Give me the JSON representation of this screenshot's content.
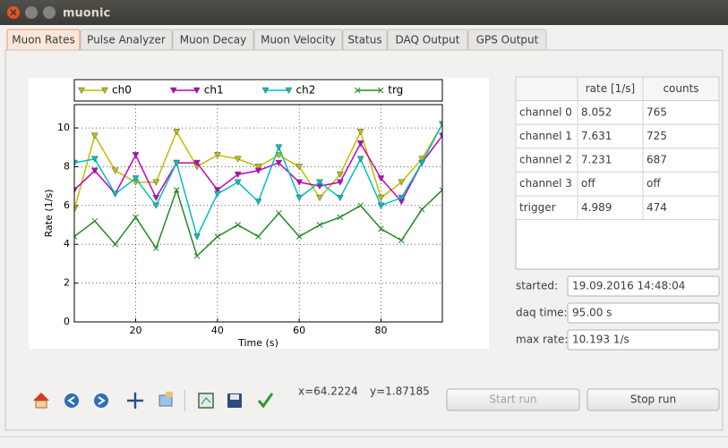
{
  "window": {
    "title": "muonic"
  },
  "tabs": [
    "Muon Rates",
    "Pulse Analyzer",
    "Muon Decay",
    "Muon Velocity",
    "Status",
    "DAQ Output",
    "GPS Output"
  ],
  "chart_data": {
    "type": "line",
    "xlabel": "Time (s)",
    "ylabel": "Rate (1/s)",
    "x": [
      5,
      10,
      15,
      20,
      25,
      30,
      35,
      40,
      45,
      50,
      55,
      60,
      65,
      70,
      75,
      80,
      85,
      90,
      95
    ],
    "series": [
      {
        "name": "ch0",
        "color": "#bfbf00",
        "marker": "v",
        "values": [
          5.8,
          9.6,
          7.8,
          7.2,
          7.2,
          9.8,
          8.0,
          8.6,
          8.4,
          8.0,
          8.6,
          8.0,
          6.4,
          7.6,
          9.8,
          6.4,
          7.2,
          8.4,
          10.2
        ]
      },
      {
        "name": "ch1",
        "color": "#bf00bf",
        "marker": "v",
        "values": [
          6.8,
          7.8,
          6.6,
          8.6,
          6.4,
          8.2,
          8.2,
          6.8,
          7.6,
          7.8,
          8.2,
          7.2,
          7.0,
          7.2,
          9.2,
          7.4,
          6.2,
          8.2,
          9.6
        ]
      },
      {
        "name": "ch2",
        "color": "#00bfbf",
        "marker": "v",
        "values": [
          8.2,
          8.4,
          6.6,
          7.4,
          6.0,
          8.2,
          4.4,
          6.6,
          7.2,
          6.2,
          9.0,
          6.4,
          7.2,
          6.4,
          8.4,
          6.0,
          6.4,
          8.2,
          10.2
        ]
      },
      {
        "name": "trg",
        "color": "#228b22",
        "marker": "x",
        "values": [
          4.4,
          5.2,
          4.0,
          5.4,
          3.8,
          6.8,
          3.4,
          4.4,
          5.0,
          4.4,
          5.6,
          4.4,
          5.0,
          5.4,
          6.0,
          4.8,
          4.2,
          5.8,
          6.8
        ]
      }
    ],
    "xlim": [
      5,
      95
    ],
    "xticks": [
      20,
      40,
      60,
      80
    ],
    "ylim": [
      0,
      11.2
    ],
    "yticks": [
      0,
      2,
      4,
      6,
      8,
      10
    ],
    "grid": true,
    "legend": "top"
  },
  "table": {
    "columns": [
      "rate [1/s]",
      "counts"
    ],
    "rows": [
      [
        "channel 0",
        "8.052",
        "765"
      ],
      [
        "channel 1",
        "7.631",
        "725"
      ],
      [
        "channel 2",
        "7.231",
        "687"
      ],
      [
        "channel 3",
        "off",
        "off"
      ],
      [
        "trigger",
        "4.989",
        "474"
      ]
    ]
  },
  "fields": [
    {
      "label": "started:",
      "value": "19.09.2016 14:48:04"
    },
    {
      "label": "daq time:",
      "value": "95.00 s"
    },
    {
      "label": "max rate:",
      "value": "10.193 1/s"
    }
  ],
  "toolbar": {
    "x": "x=64.2224",
    "y": "y=1.87185"
  },
  "buttons": [
    "Start run",
    "Stop run"
  ]
}
